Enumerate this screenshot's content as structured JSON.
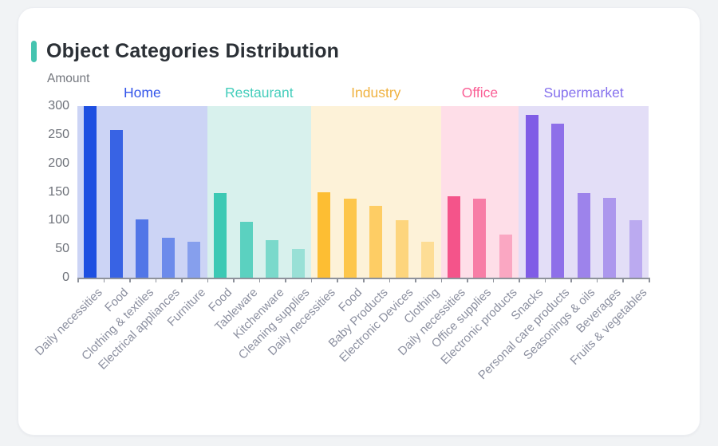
{
  "page": {
    "background_color": "#f1f3f5",
    "card_background_color": "#ffffff"
  },
  "header": {
    "accent_color": "#45c4b0"
  },
  "chart_data": {
    "type": "bar",
    "title": "Object Categories Distribution",
    "xlabel": "",
    "ylabel": "Amount",
    "ylim": [
      0,
      300
    ],
    "yticks": [
      0,
      50,
      100,
      150,
      200,
      250,
      300
    ],
    "grid": false,
    "legend_position": "none",
    "groups": [
      {
        "name": "Home",
        "label_color": "#3355ea",
        "bar_color": "#1d4fe1",
        "band_color": "#ccd4f5",
        "categories": [
          "Daily necessities",
          "Food",
          "Clothing & textiles",
          "Electrical appliances",
          "Furniture"
        ],
        "values": [
          300,
          258,
          102,
          70,
          63
        ]
      },
      {
        "name": "Restaurant",
        "label_color": "#43cdbb",
        "bar_color": "#3cc9b4",
        "band_color": "#d8f1ed",
        "categories": [
          "Food",
          "Tableware",
          "Kitchenware",
          "Cleaning supplies"
        ],
        "values": [
          148,
          98,
          65,
          50
        ]
      },
      {
        "name": "Industry",
        "label_color": "#f0b23f",
        "bar_color": "#fdbe33",
        "band_color": "#fdf2d8",
        "categories": [
          "Daily necessities",
          "Food",
          "Baby Products",
          "Electronic Devices",
          "Clothing"
        ],
        "values": [
          150,
          138,
          126,
          100,
          63
        ]
      },
      {
        "name": "Office",
        "label_color": "#fa5f95",
        "bar_color": "#f4548a",
        "band_color": "#fedee8",
        "categories": [
          "Daily necessities",
          "Office supplies",
          "Electronic products"
        ],
        "values": [
          142,
          138,
          75
        ]
      },
      {
        "name": "Supermarket",
        "label_color": "#8570ee",
        "bar_color": "#7f5ce6",
        "band_color": "#e3def7",
        "categories": [
          "Snacks",
          "Personal care products",
          "Seasonings & oils",
          "Beverages",
          "Fruits & vegetables"
        ],
        "values": [
          285,
          270,
          148,
          140,
          101
        ]
      }
    ]
  }
}
